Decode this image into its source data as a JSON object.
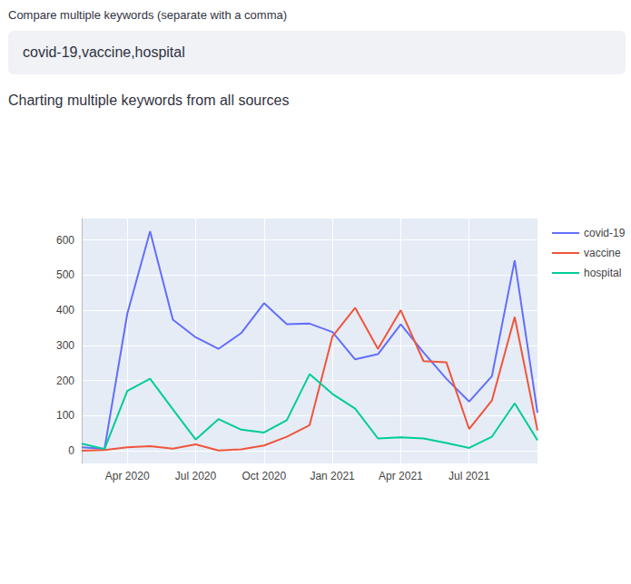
{
  "page": {
    "input_label": "Compare multiple keywords (separate with a comma)",
    "input_value": "covid-19,vaccine,hospital",
    "heading": "Charting multiple keywords from all sources"
  },
  "chart_data": {
    "type": "line",
    "categories": [
      null,
      null,
      "Apr 2020",
      null,
      null,
      "Jul 2020",
      null,
      null,
      "Oct 2020",
      null,
      null,
      "Jan 2021",
      null,
      null,
      "Apr 2021",
      null,
      null,
      "Jul 2021",
      null,
      null,
      null
    ],
    "series": [
      {
        "name": "covid-19",
        "color": "#636efa",
        "values": [
          10,
          5,
          390,
          625,
          373,
          323,
          290,
          335,
          420,
          360,
          362,
          338,
          260,
          275,
          360,
          280,
          205,
          140,
          212,
          542,
          108
        ]
      },
      {
        "name": "vaccine",
        "color": "#ef553b",
        "values": [
          0,
          2,
          10,
          13,
          6,
          18,
          1,
          4,
          15,
          40,
          73,
          325,
          407,
          290,
          400,
          255,
          252,
          62,
          143,
          381,
          58
        ]
      },
      {
        "name": "hospital",
        "color": "#00cc96",
        "values": [
          20,
          5,
          170,
          205,
          118,
          32,
          90,
          60,
          52,
          87,
          218,
          162,
          120,
          35,
          38,
          35,
          22,
          8,
          40,
          135,
          30
        ]
      }
    ],
    "ylim": [
      -36,
      661
    ],
    "yticks": [
      0,
      100,
      200,
      300,
      400,
      500,
      600
    ],
    "grid": true,
    "legend": "top-right"
  }
}
